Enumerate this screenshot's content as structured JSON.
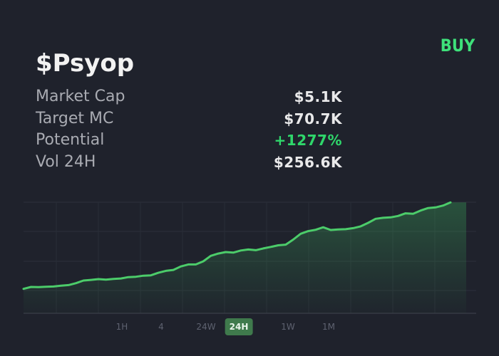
{
  "token": {
    "symbol": "$Psyop"
  },
  "actions": {
    "buy_label": "BUY"
  },
  "stats": [
    {
      "label": "Market Cap",
      "value": "$5.1K"
    },
    {
      "label": "Target MC",
      "value": "$70.7K"
    },
    {
      "label": "Potential",
      "value": "+1277%"
    },
    {
      "label": "Vol 24H",
      "value": "$256.6K"
    }
  ],
  "colors": {
    "background": "#1f222c",
    "accent": "#3ee07a",
    "positive": "#2fd66b",
    "line": "#4ccc6a",
    "active_tab": "#3f7a4c"
  },
  "timeframes": [
    {
      "label": "1H",
      "active": false
    },
    {
      "label": "4",
      "active": false
    },
    {
      "label": "24W",
      "active": false
    },
    {
      "label": "24H",
      "active": true
    },
    {
      "label": "1W",
      "active": false
    },
    {
      "label": "1M",
      "active": false
    }
  ],
  "chart_data": {
    "type": "area",
    "title": "",
    "xlabel": "",
    "ylabel": "",
    "grid": true,
    "ylim": [
      0,
      100
    ],
    "values": [
      8.5,
      10.5,
      10.4,
      10.7,
      11.0,
      11.8,
      12.5,
      14.5,
      17.3,
      18.0,
      18.8,
      18.2,
      19.0,
      19.5,
      20.9,
      21.3,
      22.4,
      22.8,
      25.5,
      27.5,
      28.5,
      32.2,
      34.3,
      34.3,
      37.6,
      43.4,
      45.8,
      47.4,
      46.8,
      49.0,
      50.1,
      49.3,
      51.2,
      52.8,
      54.5,
      55.2,
      60.5,
      66.7,
      69.5,
      70.9,
      73.5,
      70.7,
      71.3,
      71.5,
      72.6,
      74.5,
      78.2,
      82.5,
      83.5,
      84.0,
      85.5,
      88.3,
      87.8,
      91.2,
      93.8,
      94.5,
      96.5,
      99.8
    ]
  }
}
